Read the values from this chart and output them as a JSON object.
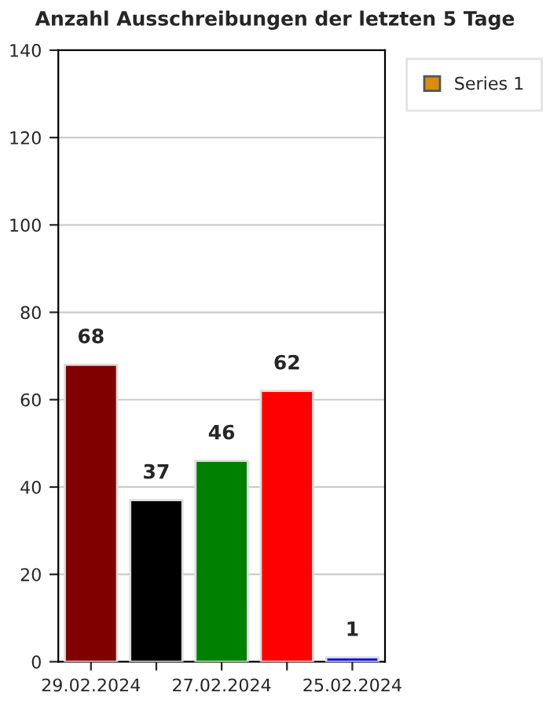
{
  "chart_data": {
    "type": "bar",
    "title": "Anzahl Ausschreibungen der letzten 5 Tage",
    "categories": [
      "29.02.2024",
      null,
      "27.02.2024",
      null,
      "25.02.2024"
    ],
    "series": [
      {
        "name": "Series 1",
        "color": "#d98c10",
        "colors": [
          "#800000",
          "#000000",
          "#008000",
          "#ff0000",
          "#0000ff"
        ],
        "values": [
          68,
          37,
          46,
          62,
          1
        ]
      }
    ],
    "ylim": [
      0,
      140
    ],
    "yticks": [
      0,
      20,
      40,
      60,
      80,
      100,
      120,
      140
    ],
    "grid": "y",
    "legend": "top right",
    "data_labels": true
  }
}
